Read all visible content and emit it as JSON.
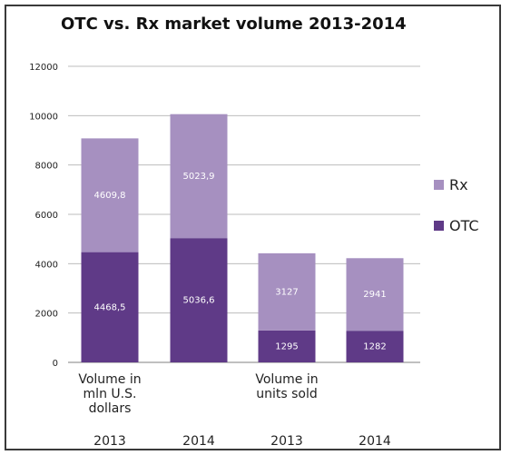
{
  "chart_data": {
    "type": "bar",
    "stacked": true,
    "title": "OTC vs. Rx market volume 2013-2014",
    "group_labels": [
      [
        "Volume in",
        "mln U.S.",
        "dollars"
      ],
      [
        "Volume in",
        "units sold"
      ]
    ],
    "categories": [
      "2013",
      "2014",
      "2013",
      "2014"
    ],
    "series": [
      {
        "name": "OTC",
        "color": "#5f3a87",
        "values": [
          4468.5,
          5036.6,
          1295,
          1282
        ],
        "labels": [
          "4468,5",
          "5036,6",
          "1295",
          "1282"
        ]
      },
      {
        "name": "Rx",
        "color": "#a690c0",
        "values": [
          4609.8,
          5023.9,
          3127,
          2941
        ],
        "labels": [
          "4609,8",
          "5023,9",
          "3127",
          "2941"
        ]
      }
    ],
    "ylim": [
      0,
      12000
    ],
    "yticks": [
      0,
      2000,
      4000,
      6000,
      8000,
      10000,
      12000
    ],
    "grid": true,
    "legend": {
      "position": "right",
      "order": [
        "Rx",
        "OTC"
      ]
    }
  }
}
